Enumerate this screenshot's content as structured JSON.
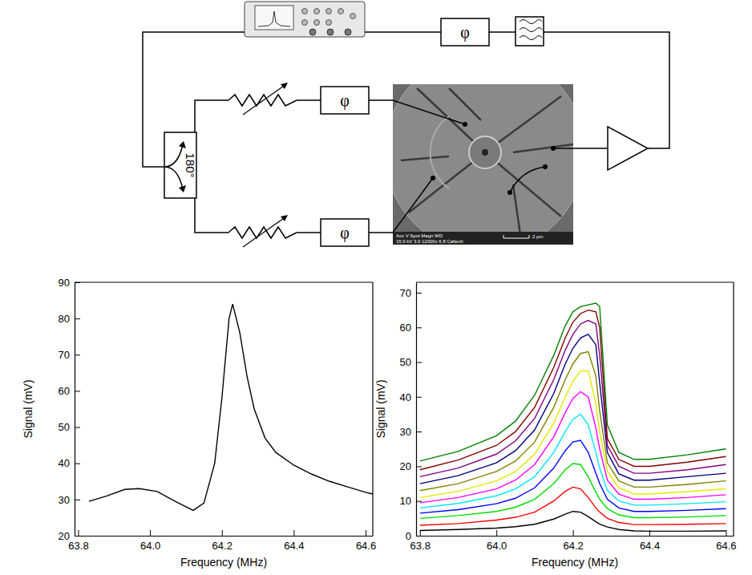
{
  "diagram": {
    "phase_boxes": [
      "φ",
      "φ",
      "φ"
    ],
    "splitter_label": "180°",
    "sem_info": [
      "Acc V  Spot Magn    WD",
      "15.0 kV 3.0  12000x   6.8  Caltech"
    ],
    "scale_bar": "2 µm"
  },
  "chart_data": [
    {
      "type": "line",
      "xlabel": "Frequency (MHz)",
      "ylabel": "Signal (mV)",
      "x": [
        63.83,
        63.88,
        63.93,
        63.97,
        64.02,
        64.07,
        64.12,
        64.15,
        64.18,
        64.2,
        64.22,
        64.23,
        64.25,
        64.27,
        64.29,
        64.32,
        64.35,
        64.4,
        64.45,
        64.5,
        64.55,
        64.6,
        64.62
      ],
      "xlim": [
        63.79,
        64.62
      ],
      "xticks": [
        63.8,
        {
          "value": 64.0,
          "label": "64.0"
        },
        64.2,
        64.4,
        64.6
      ],
      "ylim": [
        20,
        90
      ],
      "yticks": [
        20,
        30,
        40,
        50,
        60,
        70,
        80,
        90
      ],
      "series": [
        {
          "color": "#000000",
          "values": [
            29.5,
            31,
            32.8,
            33,
            32.2,
            29.5,
            27,
            29,
            40,
            58,
            80,
            84,
            76,
            64,
            55,
            47,
            43,
            39.5,
            37,
            35,
            33.5,
            32,
            31.5
          ]
        }
      ]
    },
    {
      "type": "line",
      "xlabel": "Frequency (MHz)",
      "ylabel": "Signal (mV)",
      "x": [
        63.8,
        63.9,
        64.0,
        64.05,
        64.1,
        64.15,
        64.18,
        64.2,
        64.22,
        64.24,
        64.26,
        64.27,
        64.29,
        64.32,
        64.36,
        64.4,
        64.5,
        64.6
      ],
      "xlim": [
        63.79,
        64.62
      ],
      "xticks": [
        63.8,
        {
          "value": 64.0,
          "label": "64.0"
        },
        64.2,
        64.4,
        64.6
      ],
      "ylim": [
        0,
        73
      ],
      "yticks": [
        0,
        10,
        20,
        30,
        40,
        50,
        60,
        70
      ],
      "series": [
        {
          "color": "#000000",
          "values": [
            1.5,
            1.8,
            2.2,
            2.6,
            3.3,
            4.8,
            6.2,
            7,
            6.8,
            5.5,
            4,
            3.3,
            2.5,
            1.8,
            1.4,
            1.3,
            1.3,
            1.4
          ]
        },
        {
          "color": "#ff0000",
          "values": [
            3,
            3.5,
            4.5,
            5.3,
            6.8,
            10,
            12.8,
            14,
            13.5,
            11,
            8,
            6.8,
            5,
            3.8,
            3.2,
            3.2,
            3.3,
            3.5
          ]
        },
        {
          "color": "#00dd00",
          "values": [
            5,
            5.8,
            7,
            8.2,
            10.5,
            15,
            19,
            20.8,
            20.5,
            17,
            12.5,
            10.5,
            7.8,
            6,
            5.2,
            5.2,
            5.4,
            5.8
          ]
        },
        {
          "color": "#0000ff",
          "values": [
            6.5,
            7.5,
            9.2,
            10.8,
            13.8,
            19.5,
            24.5,
            27,
            27.5,
            24,
            18,
            15,
            10.5,
            8,
            7,
            7,
            7.3,
            7.8
          ]
        },
        {
          "color": "#00e5ff",
          "values": [
            8,
            9.3,
            11.5,
            13.5,
            17,
            24,
            30,
            33.5,
            35,
            32,
            24,
            19.5,
            13,
            10,
            8.8,
            8.8,
            9.2,
            9.8
          ]
        },
        {
          "color": "#ff00ff",
          "values": [
            9.5,
            11,
            13.5,
            16,
            20.5,
            28.5,
            35.5,
            39.5,
            41.5,
            40,
            31,
            25,
            16,
            12,
            10.5,
            10.5,
            11,
            11.8
          ]
        },
        {
          "color": "#e6e600",
          "values": [
            11,
            12.8,
            15.8,
            18.5,
            23.5,
            32.5,
            40,
            44.5,
            47.5,
            47.5,
            38,
            30,
            18.5,
            13.8,
            12,
            12,
            12.7,
            13.5
          ]
        },
        {
          "color": "#808000",
          "values": [
            13,
            15,
            18.5,
            21.5,
            27,
            37,
            45,
            49.5,
            52.5,
            53,
            46,
            36,
            21,
            15.8,
            14,
            14,
            14.8,
            15.8
          ]
        },
        {
          "color": "#000080",
          "values": [
            15,
            17.3,
            21,
            24.5,
            30.5,
            41,
            49.5,
            54,
            57,
            58,
            55,
            44,
            24,
            17.8,
            16,
            16,
            17,
            18
          ]
        },
        {
          "color": "#800080",
          "values": [
            17,
            19.5,
            23.5,
            27.3,
            33.8,
            45,
            53.5,
            58,
            61,
            62,
            61,
            52,
            26,
            20,
            18,
            18,
            19,
            20.5
          ]
        },
        {
          "color": "#800000",
          "values": [
            19,
            21.8,
            26,
            30,
            37,
            48.5,
            57,
            61.5,
            64,
            65,
            64.5,
            60,
            28,
            22,
            20,
            20,
            21.2,
            22.8
          ]
        },
        {
          "color": "#008000",
          "values": [
            21.5,
            24.3,
            28.8,
            33,
            40.5,
            52,
            60.5,
            64.5,
            66,
            66.5,
            67,
            66,
            32,
            24,
            22,
            22,
            23.3,
            25
          ]
        }
      ]
    }
  ]
}
